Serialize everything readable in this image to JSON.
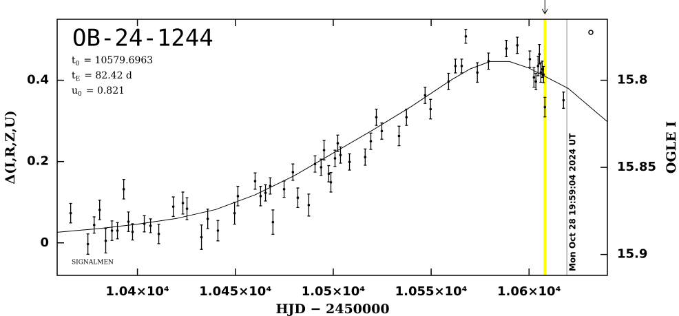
{
  "chart_data": {
    "type": "scatter",
    "title": "OB-24-1244",
    "parameters": [
      {
        "name": "t",
        "sub": "0",
        "value": "= 10579.6963"
      },
      {
        "name": "t",
        "sub": "E",
        "value": "= 82.42 d"
      },
      {
        "name": "u",
        "sub": "0",
        "value": "= 0.821"
      }
    ],
    "credit": "SIGNALMEN",
    "x_label": "HJD − 2450000",
    "y_label": "Δ(I,R,Z,U)",
    "y2_label": "OGLE I",
    "xlim": [
      10359,
      10640
    ],
    "ylim": [
      -0.08,
      0.55
    ],
    "y2lim": [
      15.912,
      15.765
    ],
    "xticks": [
      {
        "value": 10400,
        "label": "1.04×10⁴"
      },
      {
        "value": 10450,
        "label": "1.045×10⁴"
      },
      {
        "value": 10500,
        "label": "1.05×10⁴"
      },
      {
        "value": 10550,
        "label": "1.055×10⁴"
      },
      {
        "value": 10600,
        "label": "1.06×10⁴"
      }
    ],
    "yticks": [
      0,
      0.2,
      0.4
    ],
    "y2ticks": [
      15.8,
      15.85,
      15.9
    ],
    "color": "#000000",
    "x": [
      10365.9,
      10374.7,
      10377.9,
      10380.7,
      10383.8,
      10387.0,
      10389.8,
      10393.0,
      10395.4,
      10397.5,
      10403.5,
      10406.7,
      10410.9,
      10418.3,
      10423.2,
      10425.3,
      10432.7,
      10435.9,
      10441.1,
      10449.6,
      10451.3,
      10460.1,
      10462.9,
      10465.4,
      10467.8,
      10469.2,
      10474.9,
      10479.4,
      10481.9,
      10487.5,
      10490.7,
      10493.8,
      10495.3,
      10497.7,
      10498.8,
      10500.9,
      10502.3,
      10503.7,
      10508.3,
      10516.3,
      10519.2,
      10522.0,
      10524.8,
      10533.6,
      10537.4,
      10546.9,
      10549.7,
      10558.9,
      10562.4,
      10565.6,
      10567.7,
      10573.6,
      10579.3,
      10588.4,
      10594.0,
      10600.4,
      10602.5,
      10603.5,
      10604.6,
      10605.3,
      10606.0,
      10606.7,
      10607.4,
      10608.1,
      10617.6
    ],
    "values": [
      0.073,
      -0.003,
      0.044,
      0.081,
      0.005,
      0.03,
      0.03,
      0.132,
      0.052,
      0.027,
      0.047,
      0.042,
      0.022,
      0.089,
      0.098,
      0.084,
      0.014,
      0.059,
      0.03,
      0.073,
      0.115,
      0.152,
      0.115,
      0.123,
      0.14,
      0.051,
      0.132,
      0.174,
      0.111,
      0.093,
      0.194,
      0.186,
      0.228,
      0.17,
      0.149,
      0.208,
      0.245,
      0.216,
      0.199,
      0.211,
      0.25,
      0.309,
      0.275,
      0.263,
      0.309,
      0.363,
      0.329,
      0.397,
      0.435,
      0.435,
      0.508,
      0.419,
      0.447,
      0.478,
      0.486,
      0.452,
      0.407,
      0.397,
      0.435,
      0.464,
      0.419,
      0.427,
      0.414,
      0.334,
      0.351
    ],
    "errors": [
      0.024,
      0.025,
      0.02,
      0.024,
      0.03,
      0.024,
      0.02,
      0.024,
      0.024,
      0.02,
      0.02,
      0.017,
      0.024,
      0.024,
      0.027,
      0.027,
      0.03,
      0.024,
      0.025,
      0.027,
      0.024,
      0.02,
      0.024,
      0.02,
      0.02,
      0.03,
      0.02,
      0.02,
      0.024,
      0.027,
      0.02,
      0.02,
      0.024,
      0.02,
      0.024,
      0.02,
      0.02,
      0.02,
      0.02,
      0.02,
      0.02,
      0.02,
      0.02,
      0.024,
      0.02,
      0.02,
      0.024,
      0.02,
      0.017,
      0.017,
      0.017,
      0.024,
      0.02,
      0.02,
      0.02,
      0.02,
      0.024,
      0.02,
      0.024,
      0.024,
      0.024,
      0.02,
      0.02,
      0.024,
      0.02
    ],
    "model": {
      "x": [
        10359,
        10380,
        10400,
        10420,
        10440,
        10460,
        10480,
        10500,
        10520,
        10540,
        10560,
        10570,
        10580,
        10590,
        10600,
        10620,
        10640
      ],
      "values": [
        0.026,
        0.035,
        0.046,
        0.06,
        0.082,
        0.118,
        0.165,
        0.221,
        0.277,
        0.336,
        0.4,
        0.428,
        0.446,
        0.446,
        0.43,
        0.38,
        0.298
      ],
      "color": "#000000"
    },
    "vlines": [
      {
        "x": 10608.1,
        "color": "#ffff00"
      },
      {
        "x": 10619.3,
        "color": "#999999",
        "label": "Mon Oct 28 19:59:04 2024 UT"
      }
    ]
  }
}
